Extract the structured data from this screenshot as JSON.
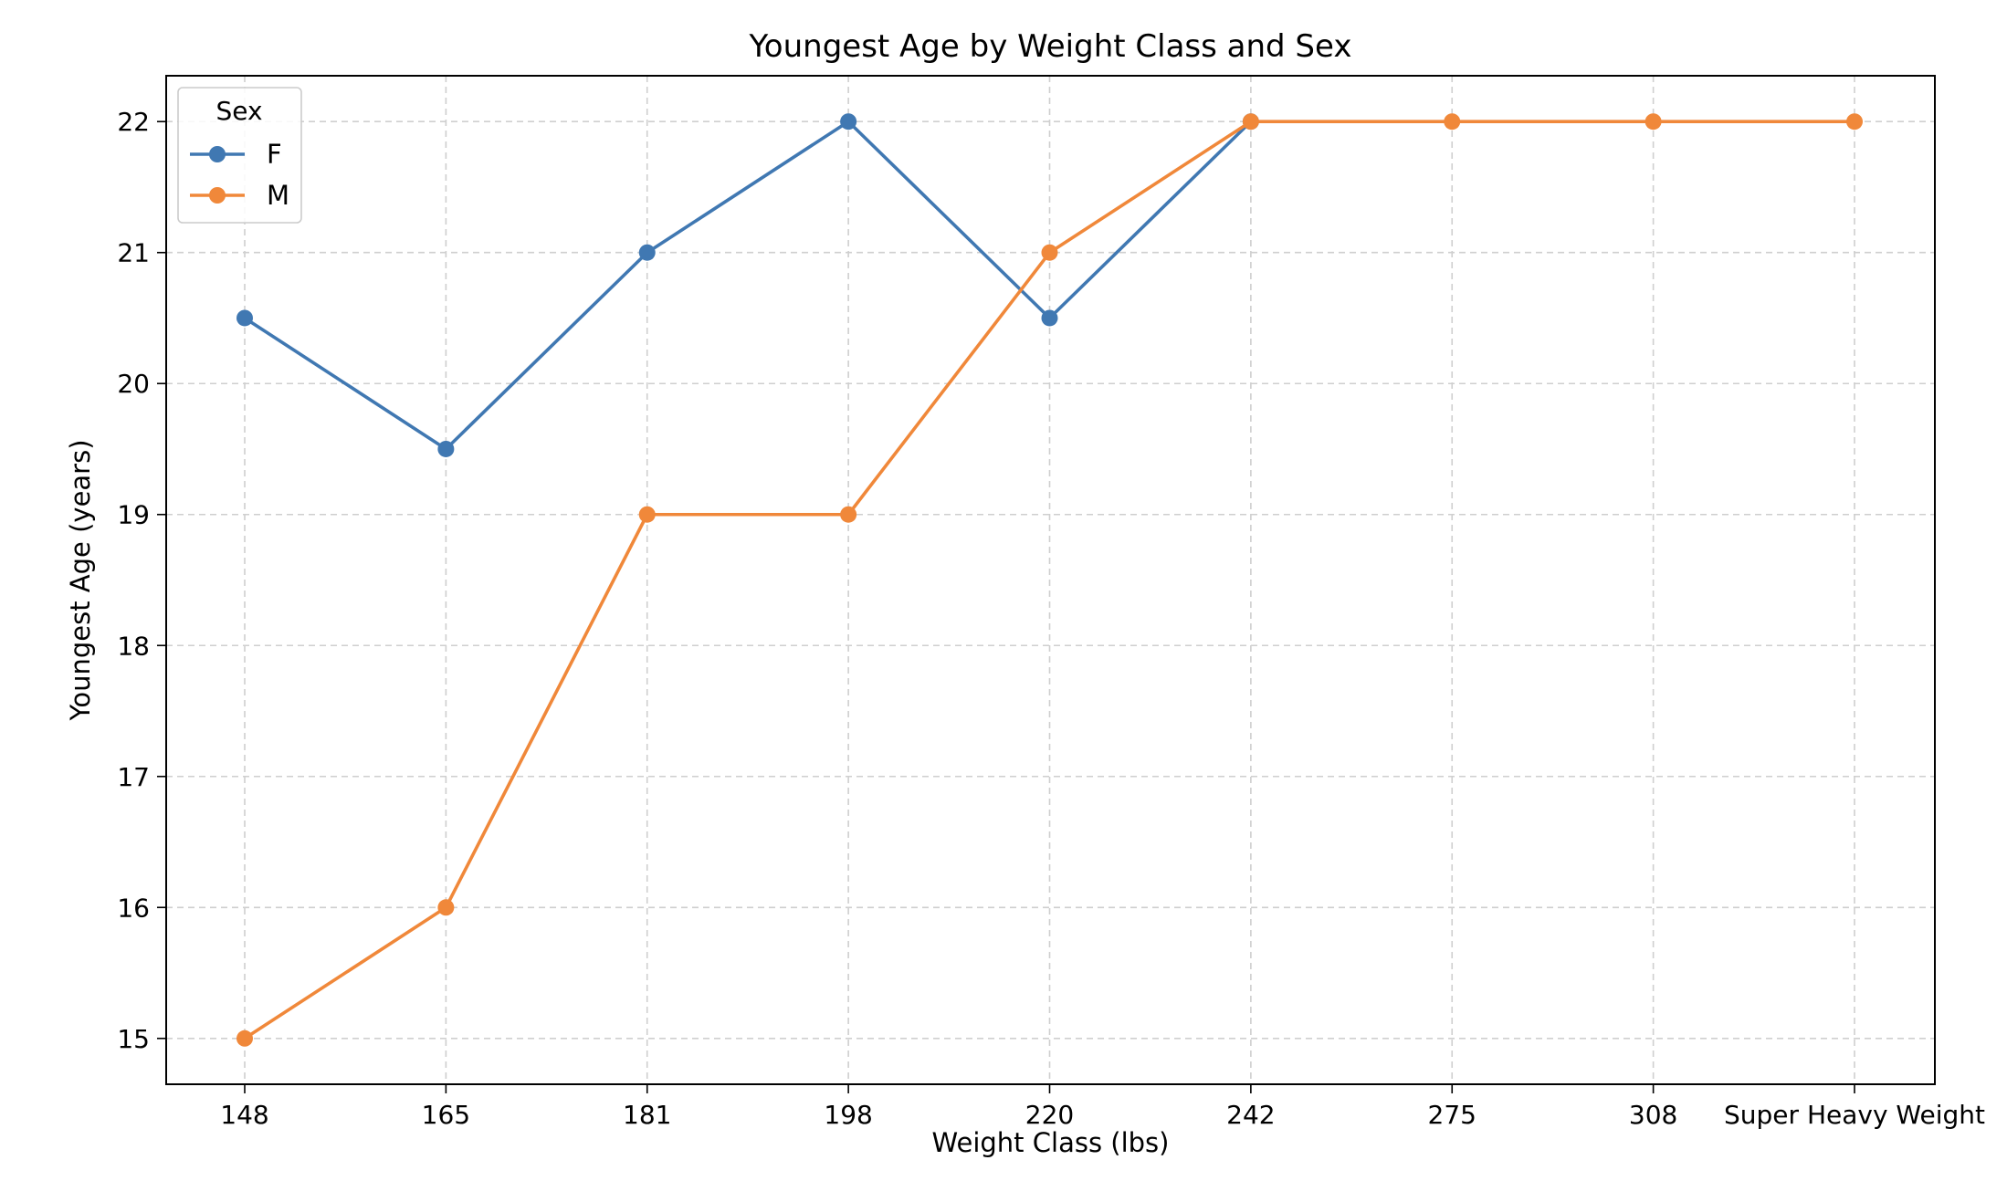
{
  "chart_data": {
    "type": "line",
    "title": "Youngest Age by Weight Class and Sex",
    "xlabel": "Weight Class (lbs)",
    "ylabel": "Youngest Age (years)",
    "categories": [
      "148",
      "165",
      "181",
      "198",
      "220",
      "242",
      "275",
      "308",
      "Super Heavy Weight"
    ],
    "ylim": [
      14.65,
      22.35
    ],
    "yticks": [
      15,
      16,
      17,
      18,
      19,
      20,
      21,
      22
    ],
    "grid": true,
    "grid_style": "dashed",
    "legend": {
      "title": "Sex",
      "placement": "top-left"
    },
    "series": [
      {
        "name": "F",
        "color": "#4078b2",
        "values": [
          20.5,
          19.5,
          21,
          22,
          20.5,
          22,
          null,
          null,
          null
        ]
      },
      {
        "name": "M",
        "color": "#f0883a",
        "values": [
          15,
          16,
          19,
          19,
          21,
          22,
          22,
          22,
          22
        ]
      }
    ]
  }
}
